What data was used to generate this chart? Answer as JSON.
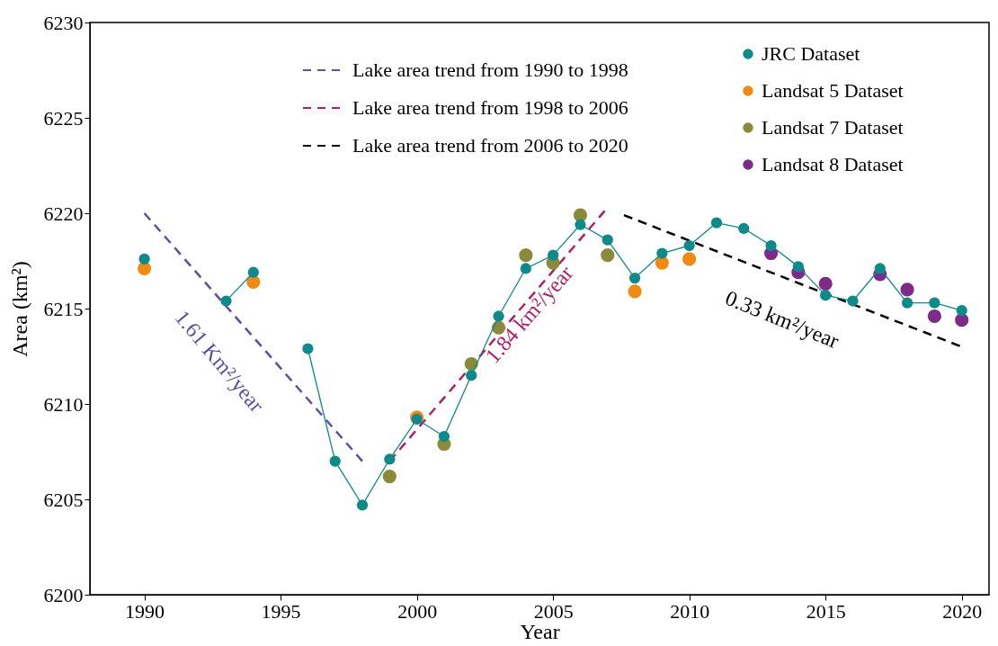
{
  "chart_data": {
    "type": "scatter",
    "xlabel": "Year",
    "ylabel": "Area (km²)",
    "xlim": [
      1988,
      2021
    ],
    "xticks": [
      1990,
      1995,
      2000,
      2005,
      2010,
      2015,
      2020
    ],
    "ylim": [
      6200,
      6230
    ],
    "yticks": [
      6200,
      6205,
      6210,
      6215,
      6220,
      6225,
      6230
    ],
    "grid": false,
    "legend": "top right",
    "series": [
      {
        "name": "Lake area trend from 1990 to 1998",
        "type": "line",
        "line_style": "dashed",
        "marker": "none",
        "color": "#5b4fa0",
        "x": [
          1990,
          1998
        ],
        "values": [
          6220,
          6207
        ]
      },
      {
        "name": "Lake area trend from 1998 to 2006",
        "type": "line",
        "line_style": "dashed",
        "marker": "none",
        "color": "#b0206a",
        "x": [
          1999,
          2007
        ],
        "values": [
          6207,
          6220.3
        ]
      },
      {
        "name": "Lake area trend from 2006 to 2020",
        "type": "line",
        "line_style": "dashed",
        "marker": "none",
        "color": "#000000",
        "x": [
          2007.6,
          2020
        ],
        "values": [
          6219.9,
          6213
        ]
      },
      {
        "name": "JRC Dataset",
        "type": "line",
        "line_style": "solid",
        "marker": "circle",
        "color": "#0e8a8a",
        "x": [
          1990,
          1991,
          1993,
          1994,
          1995,
          1996,
          1997,
          1998,
          1999,
          2000,
          2001,
          2002,
          2003,
          2004,
          2005,
          2006,
          2007,
          2008,
          2009,
          2010,
          2011,
          2012,
          2013,
          2014,
          2015,
          2016,
          2017,
          2018,
          2019,
          2020
        ],
        "values": [
          6217.6,
          null,
          6215.4,
          6216.9,
          null,
          6212.9,
          6207.0,
          6204.7,
          6207.1,
          6209.2,
          6208.3,
          6211.5,
          6214.6,
          6217.1,
          6217.8,
          6219.4,
          6218.6,
          6216.6,
          6217.9,
          6218.3,
          6219.5,
          6219.2,
          6218.3,
          6217.2,
          6215.7,
          6215.4,
          6217.1,
          6215.3,
          6215.3,
          6214.9
        ]
      },
      {
        "name": "Landsat 5 Dataset",
        "marker": "circle",
        "color": "#f08a10",
        "x": [
          1990,
          1994,
          2000,
          2008,
          2009,
          2010
        ],
        "values": [
          6217.1,
          6216.4,
          6209.3,
          6215.9,
          6217.4,
          6217.6
        ]
      },
      {
        "name": "Landsat 7 Dataset",
        "marker": "circle",
        "color": "#8a8a3a",
        "x": [
          1999,
          2001,
          2002,
          2003,
          2004,
          2005,
          2006,
          2007
        ],
        "values": [
          6206.2,
          6207.9,
          6212.1,
          6214.0,
          6217.8,
          6217.4,
          6219.9,
          6217.8
        ]
      },
      {
        "name": "Landsat 8 Dataset",
        "marker": "circle",
        "color": "#7d2a8a",
        "x": [
          2013,
          2014,
          2015,
          2017,
          2018,
          2019,
          2020
        ],
        "values": [
          6217.9,
          6216.9,
          6216.3,
          6216.8,
          6216.0,
          6214.6,
          6214.4
        ]
      }
    ],
    "annotations": [
      "1.61 Km²/year",
      "1.84 km²/year",
      "0.33 km²/year"
    ]
  }
}
